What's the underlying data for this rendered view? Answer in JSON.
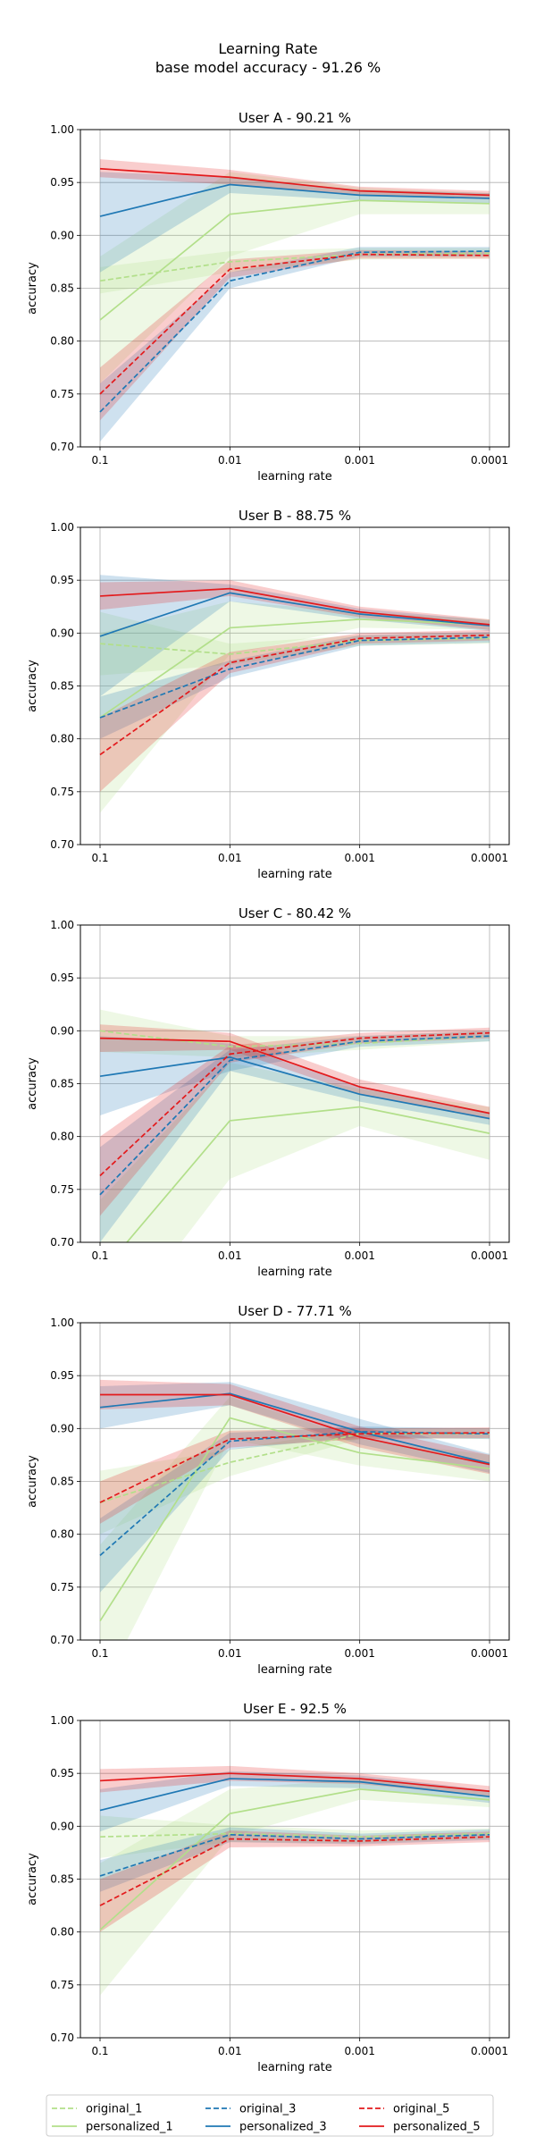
{
  "figure": {
    "title_line1": "Learning Rate",
    "title_line2": "base model accuracy - 91.26 %"
  },
  "legend": {
    "entries": [
      {
        "series": "original_1",
        "label": "original_1",
        "color": "#b2df8a",
        "dashed": true
      },
      {
        "series": "personalized_1",
        "label": "personalized_1",
        "color": "#b2df8a",
        "dashed": false
      },
      {
        "series": "original_3",
        "label": "original_3",
        "color": "#1f78b4",
        "dashed": true
      },
      {
        "series": "personalized_3",
        "label": "personalized_3",
        "color": "#1f78b4",
        "dashed": false
      },
      {
        "series": "original_5",
        "label": "original_5",
        "color": "#e31a1c",
        "dashed": true
      },
      {
        "series": "personalized_5",
        "label": "personalized_5",
        "color": "#e31a1c",
        "dashed": false
      }
    ]
  },
  "chart_data": [
    {
      "type": "line",
      "title": "User A - 90.21 %",
      "xlabel": "learning rate",
      "ylabel": "accuracy",
      "categories": [
        "0.1",
        "0.01",
        "0.001",
        "0.0001"
      ],
      "ylim": [
        0.7,
        1.0
      ],
      "yticks": [
        "0.70",
        "0.75",
        "0.80",
        "0.85",
        "0.90",
        "0.95",
        "1.00"
      ],
      "grid": true,
      "series": [
        {
          "name": "original_1",
          "color": "#b2df8a",
          "dashed": true,
          "values": [
            0.857,
            0.875,
            0.882,
            0.883
          ],
          "lower": [
            0.845,
            0.865,
            0.877,
            0.878
          ],
          "upper": [
            0.87,
            0.885,
            0.888,
            0.888
          ]
        },
        {
          "name": "personalized_1",
          "color": "#b2df8a",
          "dashed": false,
          "values": [
            0.82,
            0.92,
            0.933,
            0.93
          ],
          "lower": [
            0.76,
            0.88,
            0.92,
            0.92
          ],
          "upper": [
            0.88,
            0.96,
            0.945,
            0.94
          ]
        },
        {
          "name": "original_3",
          "color": "#1f78b4",
          "dashed": true,
          "values": [
            0.733,
            0.857,
            0.884,
            0.885
          ],
          "lower": [
            0.705,
            0.85,
            0.88,
            0.88
          ],
          "upper": [
            0.76,
            0.865,
            0.889,
            0.889
          ]
        },
        {
          "name": "personalized_3",
          "color": "#1f78b4",
          "dashed": false,
          "values": [
            0.918,
            0.948,
            0.938,
            0.935
          ],
          "lower": [
            0.865,
            0.94,
            0.933,
            0.93
          ],
          "upper": [
            0.96,
            0.955,
            0.943,
            0.94
          ]
        },
        {
          "name": "original_5",
          "color": "#e31a1c",
          "dashed": true,
          "values": [
            0.75,
            0.868,
            0.882,
            0.881
          ],
          "lower": [
            0.725,
            0.86,
            0.878,
            0.878
          ],
          "upper": [
            0.775,
            0.877,
            0.886,
            0.885
          ]
        },
        {
          "name": "personalized_5",
          "color": "#e31a1c",
          "dashed": false,
          "values": [
            0.963,
            0.955,
            0.942,
            0.938
          ],
          "lower": [
            0.955,
            0.948,
            0.938,
            0.934
          ],
          "upper": [
            0.972,
            0.962,
            0.946,
            0.942
          ]
        }
      ]
    },
    {
      "type": "line",
      "title": "User B - 88.75 %",
      "xlabel": "learning rate",
      "ylabel": "accuracy",
      "categories": [
        "0.1",
        "0.01",
        "0.001",
        "0.0001"
      ],
      "ylim": [
        0.7,
        1.0
      ],
      "yticks": [
        "0.70",
        "0.75",
        "0.80",
        "0.85",
        "0.90",
        "0.95",
        "1.00"
      ],
      "grid": true,
      "series": [
        {
          "name": "original_1",
          "color": "#b2df8a",
          "dashed": true,
          "values": [
            0.89,
            0.88,
            0.893,
            0.895
          ],
          "lower": [
            0.86,
            0.87,
            0.888,
            0.89
          ],
          "upper": [
            0.92,
            0.89,
            0.898,
            0.9
          ]
        },
        {
          "name": "personalized_1",
          "color": "#b2df8a",
          "dashed": false,
          "values": [
            0.82,
            0.905,
            0.913,
            0.908
          ],
          "lower": [
            0.73,
            0.88,
            0.905,
            0.903
          ],
          "upper": [
            0.9,
            0.93,
            0.92,
            0.913
          ]
        },
        {
          "name": "original_3",
          "color": "#1f78b4",
          "dashed": true,
          "values": [
            0.82,
            0.866,
            0.893,
            0.896
          ],
          "lower": [
            0.8,
            0.858,
            0.888,
            0.891
          ],
          "upper": [
            0.84,
            0.874,
            0.898,
            0.901
          ]
        },
        {
          "name": "personalized_3",
          "color": "#1f78b4",
          "dashed": false,
          "values": [
            0.897,
            0.938,
            0.918,
            0.907
          ],
          "lower": [
            0.84,
            0.93,
            0.913,
            0.902
          ],
          "upper": [
            0.955,
            0.946,
            0.923,
            0.912
          ]
        },
        {
          "name": "original_5",
          "color": "#e31a1c",
          "dashed": true,
          "values": [
            0.785,
            0.872,
            0.895,
            0.898
          ],
          "lower": [
            0.75,
            0.862,
            0.89,
            0.893
          ],
          "upper": [
            0.82,
            0.882,
            0.9,
            0.903
          ]
        },
        {
          "name": "personalized_5",
          "color": "#e31a1c",
          "dashed": false,
          "values": [
            0.935,
            0.942,
            0.92,
            0.908
          ],
          "lower": [
            0.922,
            0.935,
            0.915,
            0.903
          ],
          "upper": [
            0.948,
            0.95,
            0.925,
            0.913
          ]
        }
      ]
    },
    {
      "type": "line",
      "title": "User C - 80.42 %",
      "xlabel": "learning rate",
      "ylabel": "accuracy",
      "categories": [
        "0.1",
        "0.01",
        "0.001",
        "0.0001"
      ],
      "ylim": [
        0.7,
        1.0
      ],
      "yticks": [
        "0.70",
        "0.75",
        "0.80",
        "0.85",
        "0.90",
        "0.95",
        "1.00"
      ],
      "grid": true,
      "series": [
        {
          "name": "original_1",
          "color": "#b2df8a",
          "dashed": true,
          "values": [
            0.9,
            0.885,
            0.888,
            0.895
          ],
          "lower": [
            0.88,
            0.875,
            0.882,
            0.89
          ],
          "upper": [
            0.92,
            0.895,
            0.895,
            0.9
          ]
        },
        {
          "name": "personalized_1",
          "color": "#b2df8a",
          "dashed": false,
          "values": [
            0.67,
            0.815,
            0.828,
            0.803
          ],
          "lower": [
            0.6,
            0.76,
            0.81,
            0.778
          ],
          "upper": [
            0.74,
            0.87,
            0.845,
            0.828
          ]
        },
        {
          "name": "original_3",
          "color": "#1f78b4",
          "dashed": true,
          "values": [
            0.745,
            0.872,
            0.89,
            0.895
          ],
          "lower": [
            0.7,
            0.862,
            0.885,
            0.89
          ],
          "upper": [
            0.79,
            0.882,
            0.895,
            0.9
          ]
        },
        {
          "name": "personalized_3",
          "color": "#1f78b4",
          "dashed": false,
          "values": [
            0.857,
            0.875,
            0.84,
            0.817
          ],
          "lower": [
            0.82,
            0.862,
            0.833,
            0.811
          ],
          "upper": [
            0.895,
            0.888,
            0.847,
            0.823
          ]
        },
        {
          "name": "original_5",
          "color": "#e31a1c",
          "dashed": true,
          "values": [
            0.763,
            0.878,
            0.893,
            0.898
          ],
          "lower": [
            0.725,
            0.87,
            0.888,
            0.893
          ],
          "upper": [
            0.8,
            0.886,
            0.898,
            0.903
          ]
        },
        {
          "name": "personalized_5",
          "color": "#e31a1c",
          "dashed": false,
          "values": [
            0.893,
            0.89,
            0.847,
            0.822
          ],
          "lower": [
            0.88,
            0.882,
            0.84,
            0.816
          ],
          "upper": [
            0.906,
            0.898,
            0.854,
            0.828
          ]
        }
      ]
    },
    {
      "type": "line",
      "title": "User D - 77.71 %",
      "xlabel": "learning rate",
      "ylabel": "accuracy",
      "categories": [
        "0.1",
        "0.01",
        "0.001",
        "0.0001"
      ],
      "ylim": [
        0.7,
        1.0
      ],
      "yticks": [
        "0.70",
        "0.75",
        "0.80",
        "0.85",
        "0.90",
        "0.95",
        "1.00"
      ],
      "grid": true,
      "series": [
        {
          "name": "original_1",
          "color": "#b2df8a",
          "dashed": true,
          "values": [
            0.83,
            0.868,
            0.895,
            0.895
          ],
          "lower": [
            0.8,
            0.855,
            0.89,
            0.89
          ],
          "upper": [
            0.86,
            0.88,
            0.9,
            0.9
          ]
        },
        {
          "name": "personalized_1",
          "color": "#b2df8a",
          "dashed": false,
          "values": [
            0.718,
            0.91,
            0.877,
            0.862
          ],
          "lower": [
            0.65,
            0.89,
            0.865,
            0.85
          ],
          "upper": [
            0.79,
            0.93,
            0.89,
            0.875
          ]
        },
        {
          "name": "original_3",
          "color": "#1f78b4",
          "dashed": true,
          "values": [
            0.78,
            0.888,
            0.897,
            0.895
          ],
          "lower": [
            0.745,
            0.88,
            0.892,
            0.89
          ],
          "upper": [
            0.815,
            0.896,
            0.902,
            0.9
          ]
        },
        {
          "name": "personalized_3",
          "color": "#1f78b4",
          "dashed": false,
          "values": [
            0.92,
            0.933,
            0.897,
            0.867
          ],
          "lower": [
            0.9,
            0.922,
            0.885,
            0.858
          ],
          "upper": [
            0.94,
            0.944,
            0.909,
            0.876
          ]
        },
        {
          "name": "original_5",
          "color": "#e31a1c",
          "dashed": true,
          "values": [
            0.83,
            0.89,
            0.895,
            0.896
          ],
          "lower": [
            0.81,
            0.882,
            0.89,
            0.891
          ],
          "upper": [
            0.85,
            0.898,
            0.9,
            0.901
          ]
        },
        {
          "name": "personalized_5",
          "color": "#e31a1c",
          "dashed": false,
          "values": [
            0.932,
            0.932,
            0.892,
            0.866
          ],
          "lower": [
            0.918,
            0.922,
            0.882,
            0.857
          ],
          "upper": [
            0.946,
            0.942,
            0.902,
            0.875
          ]
        }
      ]
    },
    {
      "type": "line",
      "title": "User E - 92.5 %",
      "xlabel": "learning rate",
      "ylabel": "accuracy",
      "categories": [
        "0.1",
        "0.01",
        "0.001",
        "0.0001"
      ],
      "ylim": [
        0.7,
        1.0
      ],
      "yticks": [
        "0.70",
        "0.75",
        "0.80",
        "0.85",
        "0.90",
        "0.95",
        "1.00"
      ],
      "grid": true,
      "series": [
        {
          "name": "original_1",
          "color": "#b2df8a",
          "dashed": true,
          "values": [
            0.89,
            0.893,
            0.89,
            0.893
          ],
          "lower": [
            0.87,
            0.885,
            0.884,
            0.888
          ],
          "upper": [
            0.91,
            0.901,
            0.896,
            0.898
          ]
        },
        {
          "name": "personalized_1",
          "color": "#b2df8a",
          "dashed": false,
          "values": [
            0.802,
            0.912,
            0.935,
            0.925
          ],
          "lower": [
            0.74,
            0.89,
            0.925,
            0.918
          ],
          "upper": [
            0.865,
            0.935,
            0.945,
            0.932
          ]
        },
        {
          "name": "original_3",
          "color": "#1f78b4",
          "dashed": true,
          "values": [
            0.853,
            0.892,
            0.888,
            0.892
          ],
          "lower": [
            0.838,
            0.885,
            0.883,
            0.887
          ],
          "upper": [
            0.868,
            0.899,
            0.893,
            0.897
          ]
        },
        {
          "name": "personalized_3",
          "color": "#1f78b4",
          "dashed": false,
          "values": [
            0.915,
            0.945,
            0.942,
            0.928
          ],
          "lower": [
            0.895,
            0.938,
            0.936,
            0.922
          ],
          "upper": [
            0.935,
            0.952,
            0.948,
            0.934
          ]
        },
        {
          "name": "original_5",
          "color": "#e31a1c",
          "dashed": true,
          "values": [
            0.825,
            0.888,
            0.886,
            0.89
          ],
          "lower": [
            0.8,
            0.88,
            0.881,
            0.885
          ],
          "upper": [
            0.85,
            0.896,
            0.891,
            0.895
          ]
        },
        {
          "name": "personalized_5",
          "color": "#e31a1c",
          "dashed": false,
          "values": [
            0.943,
            0.95,
            0.945,
            0.933
          ],
          "lower": [
            0.932,
            0.943,
            0.94,
            0.928
          ],
          "upper": [
            0.954,
            0.957,
            0.95,
            0.938
          ]
        }
      ]
    }
  ]
}
